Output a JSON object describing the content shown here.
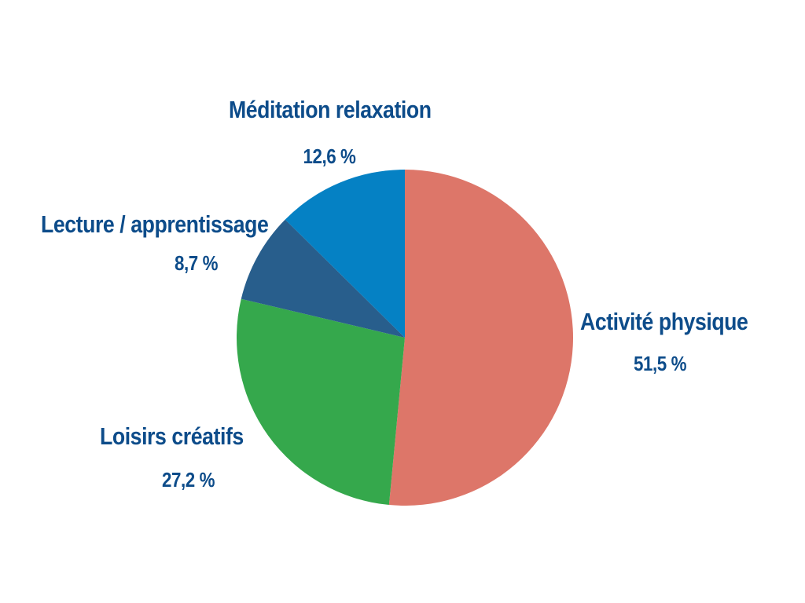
{
  "chart_data": {
    "type": "pie",
    "title": "",
    "start_angle_deg": 0,
    "direction": "clockwise",
    "slices": [
      {
        "label": "Activité physique",
        "value_text": "51,5 %",
        "value": 51.5,
        "color": "#dd7669"
      },
      {
        "label": "Loisirs créatifs",
        "value_text": "27,2 %",
        "value": 27.2,
        "color": "#35a84c"
      },
      {
        "label": "Lecture / apprentissage",
        "value_text": "8,7 %",
        "value": 8.7,
        "color": "#285e8c"
      },
      {
        "label": "Méditation relaxation",
        "value_text": "12,6 %",
        "value": 12.6,
        "color": "#0581c4"
      }
    ],
    "label_color": "#0d4c8a",
    "legend": "none"
  }
}
